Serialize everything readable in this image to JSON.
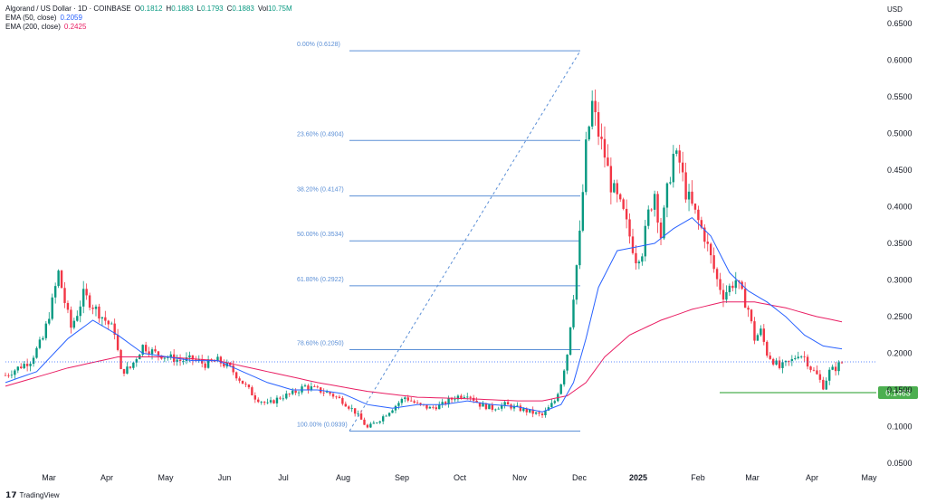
{
  "legend": {
    "title": "Algorand / US Dollar · 1D · COINBASE",
    "o_label": "O",
    "o": "0.1812",
    "h_label": "H",
    "h": "0.1883",
    "l_label": "L",
    "l": "0.1793",
    "c_label": "C",
    "c": "0.1883",
    "vol_label": "Vol",
    "vol": "10.75M",
    "ema50_label": "EMA (50, close)",
    "ema50": "0.2059",
    "ema200_label": "EMA (200, close)",
    "ema200": "0.2425"
  },
  "currency": "USD",
  "brand": "TradingView",
  "colors": {
    "up": "#089981",
    "down": "#f23645",
    "ema50": "#2962ff",
    "ema200": "#e91e63",
    "fib": "#5b8fd6",
    "support": "#4caf50"
  },
  "chart_data": {
    "type": "candlestick",
    "y_axis": {
      "ticks": [
        "0.6500",
        "0.6000",
        "0.5500",
        "0.5000",
        "0.4500",
        "0.4000",
        "0.3500",
        "0.3000",
        "0.2500",
        "0.2000",
        "0.1500",
        "0.1000",
        "0.0500"
      ],
      "ylim": [
        0.05,
        0.65
      ]
    },
    "x_axis": {
      "ticks": [
        "Mar",
        "Apr",
        "May",
        "Jun",
        "Jul",
        "Aug",
        "Sep",
        "Oct",
        "Nov",
        "Dec",
        "2025",
        "Feb",
        "Mar",
        "Apr",
        "May"
      ]
    },
    "current_price": "0.1883",
    "support_level": {
      "label": "0.1463",
      "value": 0.1463
    },
    "fibonacci": [
      {
        "label": "0.00% (0.6128)",
        "value": 0.6128
      },
      {
        "label": "23.60% (0.4904)",
        "value": 0.4904
      },
      {
        "label": "38.20% (0.4147)",
        "value": 0.4147
      },
      {
        "label": "50.00% (0.3534)",
        "value": 0.3534
      },
      {
        "label": "61.80% (0.2922)",
        "value": 0.2922
      },
      {
        "label": "78.60% (0.2050)",
        "value": 0.205
      },
      {
        "label": "100.00% (0.0939)",
        "value": 0.0939
      }
    ],
    "price_path": [
      [
        0,
        0.17
      ],
      [
        4,
        0.18
      ],
      [
        8,
        0.19
      ],
      [
        12,
        0.22
      ],
      [
        15,
        0.27
      ],
      [
        17,
        0.31
      ],
      [
        19,
        0.27
      ],
      [
        21,
        0.235
      ],
      [
        23,
        0.255
      ],
      [
        25,
        0.28
      ],
      [
        27,
        0.27
      ],
      [
        30,
        0.255
      ],
      [
        33,
        0.24
      ],
      [
        35,
        0.23
      ],
      [
        37,
        0.175
      ],
      [
        40,
        0.18
      ],
      [
        44,
        0.21
      ],
      [
        48,
        0.2
      ],
      [
        52,
        0.195
      ],
      [
        56,
        0.19
      ],
      [
        60,
        0.192
      ],
      [
        64,
        0.185
      ],
      [
        68,
        0.19
      ],
      [
        72,
        0.18
      ],
      [
        76,
        0.16
      ],
      [
        80,
        0.14
      ],
      [
        84,
        0.13
      ],
      [
        88,
        0.14
      ],
      [
        92,
        0.145
      ],
      [
        96,
        0.155
      ],
      [
        100,
        0.15
      ],
      [
        104,
        0.145
      ],
      [
        108,
        0.135
      ],
      [
        112,
        0.12
      ],
      [
        116,
        0.098
      ],
      [
        120,
        0.11
      ],
      [
        124,
        0.125
      ],
      [
        128,
        0.14
      ],
      [
        132,
        0.13
      ],
      [
        136,
        0.125
      ],
      [
        140,
        0.13
      ],
      [
        144,
        0.14
      ],
      [
        148,
        0.145
      ],
      [
        152,
        0.13
      ],
      [
        156,
        0.125
      ],
      [
        160,
        0.13
      ],
      [
        164,
        0.125
      ],
      [
        168,
        0.12
      ],
      [
        172,
        0.115
      ],
      [
        176,
        0.135
      ],
      [
        178,
        0.16
      ],
      [
        180,
        0.2
      ],
      [
        182,
        0.28
      ],
      [
        184,
        0.36
      ],
      [
        186,
        0.48
      ],
      [
        188,
        0.54
      ],
      [
        190,
        0.5
      ],
      [
        192,
        0.47
      ],
      [
        194,
        0.43
      ],
      [
        196,
        0.41
      ],
      [
        198,
        0.39
      ],
      [
        200,
        0.36
      ],
      [
        202,
        0.33
      ],
      [
        204,
        0.34
      ],
      [
        206,
        0.39
      ],
      [
        208,
        0.42
      ],
      [
        210,
        0.36
      ],
      [
        212,
        0.42
      ],
      [
        214,
        0.47
      ],
      [
        216,
        0.46
      ],
      [
        218,
        0.42
      ],
      [
        220,
        0.4
      ],
      [
        222,
        0.38
      ],
      [
        224,
        0.36
      ],
      [
        226,
        0.33
      ],
      [
        228,
        0.3
      ],
      [
        230,
        0.28
      ],
      [
        232,
        0.29
      ],
      [
        234,
        0.3
      ],
      [
        236,
        0.28
      ],
      [
        238,
        0.26
      ],
      [
        240,
        0.22
      ],
      [
        242,
        0.23
      ],
      [
        244,
        0.2
      ],
      [
        246,
        0.19
      ],
      [
        248,
        0.18
      ],
      [
        250,
        0.185
      ],
      [
        252,
        0.19
      ],
      [
        254,
        0.2
      ],
      [
        256,
        0.195
      ],
      [
        258,
        0.18
      ],
      [
        260,
        0.17
      ],
      [
        262,
        0.155
      ],
      [
        264,
        0.175
      ],
      [
        266,
        0.18
      ],
      [
        268,
        0.188
      ]
    ],
    "ema50_path": [
      [
        0,
        0.16
      ],
      [
        10,
        0.175
      ],
      [
        20,
        0.22
      ],
      [
        28,
        0.245
      ],
      [
        36,
        0.225
      ],
      [
        44,
        0.2
      ],
      [
        52,
        0.195
      ],
      [
        60,
        0.19
      ],
      [
        68,
        0.19
      ],
      [
        76,
        0.175
      ],
      [
        84,
        0.16
      ],
      [
        92,
        0.15
      ],
      [
        100,
        0.15
      ],
      [
        108,
        0.145
      ],
      [
        116,
        0.13
      ],
      [
        124,
        0.125
      ],
      [
        132,
        0.13
      ],
      [
        140,
        0.13
      ],
      [
        148,
        0.135
      ],
      [
        156,
        0.13
      ],
      [
        164,
        0.127
      ],
      [
        172,
        0.12
      ],
      [
        178,
        0.13
      ],
      [
        182,
        0.16
      ],
      [
        186,
        0.22
      ],
      [
        190,
        0.29
      ],
      [
        196,
        0.34
      ],
      [
        202,
        0.345
      ],
      [
        208,
        0.35
      ],
      [
        214,
        0.37
      ],
      [
        220,
        0.385
      ],
      [
        226,
        0.36
      ],
      [
        232,
        0.31
      ],
      [
        238,
        0.285
      ],
      [
        244,
        0.27
      ],
      [
        250,
        0.25
      ],
      [
        256,
        0.225
      ],
      [
        262,
        0.21
      ],
      [
        268,
        0.206
      ]
    ],
    "ema200_path": [
      [
        0,
        0.155
      ],
      [
        20,
        0.18
      ],
      [
        36,
        0.195
      ],
      [
        52,
        0.195
      ],
      [
        68,
        0.19
      ],
      [
        84,
        0.175
      ],
      [
        100,
        0.16
      ],
      [
        116,
        0.148
      ],
      [
        132,
        0.14
      ],
      [
        148,
        0.138
      ],
      [
        164,
        0.135
      ],
      [
        172,
        0.135
      ],
      [
        180,
        0.142
      ],
      [
        186,
        0.16
      ],
      [
        192,
        0.195
      ],
      [
        200,
        0.225
      ],
      [
        210,
        0.245
      ],
      [
        220,
        0.26
      ],
      [
        230,
        0.27
      ],
      [
        240,
        0.27
      ],
      [
        250,
        0.262
      ],
      [
        260,
        0.25
      ],
      [
        268,
        0.243
      ]
    ]
  }
}
